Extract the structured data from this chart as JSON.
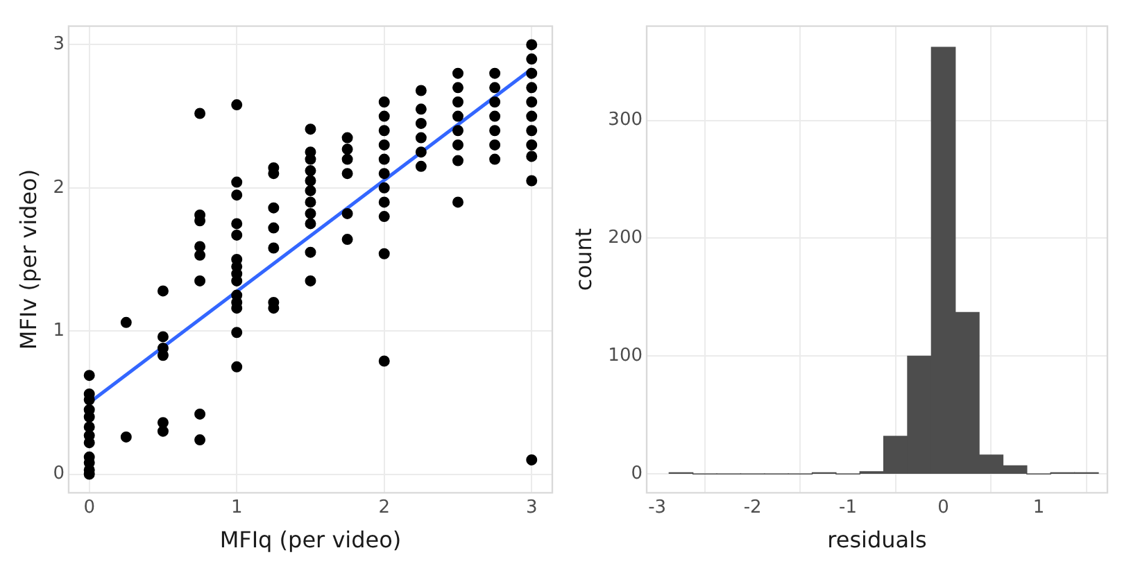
{
  "chart_data": [
    {
      "type": "scatter",
      "xlabel": "MFIq (per video)",
      "ylabel": "MFIv (per video)",
      "xlim": [
        -0.14,
        3.14
      ],
      "ylim": [
        -0.13,
        3.13
      ],
      "xticks": [
        0,
        1,
        2,
        3
      ],
      "yticks": [
        0,
        1,
        2,
        3
      ],
      "grid": true,
      "legend": false,
      "series": [
        {
          "color": "#000000",
          "marker": "circle",
          "x": [
            0,
            0,
            0,
            0,
            0,
            0,
            0,
            0,
            0,
            0,
            0,
            0,
            0.25,
            0.25,
            0.5,
            0.5,
            0.5,
            0.5,
            0.5,
            0.5,
            0.75,
            0.75,
            0.75,
            0.75,
            0.75,
            0.75,
            0.75,
            0.75,
            1,
            1,
            1,
            1,
            1,
            1,
            1,
            1,
            1,
            1,
            1,
            1,
            1,
            1,
            1.25,
            1.25,
            1.25,
            1.25,
            1.25,
            1.25,
            1.25,
            1.5,
            1.5,
            1.5,
            1.5,
            1.5,
            1.5,
            1.5,
            1.5,
            1.5,
            1.5,
            1.5,
            1.75,
            1.75,
            1.75,
            1.75,
            1.75,
            1.75,
            2,
            2,
            2,
            2,
            2,
            2,
            2,
            2,
            2,
            2,
            2,
            2.25,
            2.25,
            2.25,
            2.25,
            2.25,
            2.25,
            2.5,
            2.5,
            2.5,
            2.5,
            2.5,
            2.5,
            2.5,
            2.5,
            2.75,
            2.75,
            2.75,
            2.75,
            2.75,
            2.75,
            2.75,
            3,
            3,
            3,
            3,
            3,
            3,
            3,
            3,
            3,
            3,
            3
          ],
          "values": [
            0.69,
            0.56,
            0.52,
            0.45,
            0.4,
            0.33,
            0.27,
            0.22,
            0.12,
            0.08,
            0.03,
            0,
            1.06,
            0.26,
            1.28,
            0.96,
            0.88,
            0.83,
            0.36,
            0.3,
            2.52,
            1.81,
            1.77,
            1.59,
            1.53,
            1.35,
            0.42,
            0.24,
            2.58,
            2.04,
            1.95,
            1.75,
            1.67,
            1.5,
            1.45,
            1.4,
            1.35,
            1.25,
            0.99,
            0.75,
            1.2,
            1.16,
            2.14,
            2.1,
            1.86,
            1.72,
            1.58,
            1.2,
            1.16,
            2.41,
            2.25,
            2.2,
            2.12,
            2.05,
            1.98,
            1.9,
            1.82,
            1.75,
            1.55,
            1.35,
            2.35,
            2.27,
            2.2,
            2.1,
            1.82,
            1.64,
            2.6,
            2.5,
            2.4,
            2.3,
            2.2,
            2.1,
            2,
            1.9,
            1.8,
            1.54,
            0.79,
            2.68,
            2.55,
            2.45,
            2.35,
            2.25,
            2.15,
            2.8,
            2.7,
            2.6,
            2.5,
            2.4,
            2.3,
            2.19,
            1.9,
            2.8,
            2.7,
            2.6,
            2.5,
            2.4,
            2.3,
            2.2,
            3,
            2.9,
            2.8,
            2.7,
            2.6,
            2.5,
            2.4,
            2.3,
            2.22,
            2.05,
            0.1
          ]
        },
        {
          "type": "line",
          "color": "#3366ff",
          "marker": "none",
          "x": [
            0,
            3
          ],
          "values": [
            0.5,
            2.83
          ]
        }
      ]
    },
    {
      "type": "histogram",
      "xlabel": "residuals",
      "ylabel": "count",
      "xlim": [
        -3.11,
        1.72
      ],
      "ylim": [
        -16,
        380
      ],
      "xticks": [
        -3,
        -2,
        -1,
        0,
        1
      ],
      "yticks": [
        0,
        100,
        200,
        300
      ],
      "grid": true,
      "legend": false,
      "color": "#4d4d4d",
      "bins": [
        -2.875,
        -2.625,
        -2.375,
        -2.125,
        -1.875,
        -1.625,
        -1.375,
        -1.125,
        -0.875,
        -0.625,
        -0.375,
        -0.125,
        0.125,
        0.375,
        0.625,
        0.875,
        1.125,
        1.375,
        1.625
      ],
      "values": [
        1,
        0,
        0,
        0,
        0,
        0,
        1,
        0,
        2,
        32,
        100,
        362,
        137,
        16,
        7,
        0,
        1,
        1
      ]
    }
  ]
}
